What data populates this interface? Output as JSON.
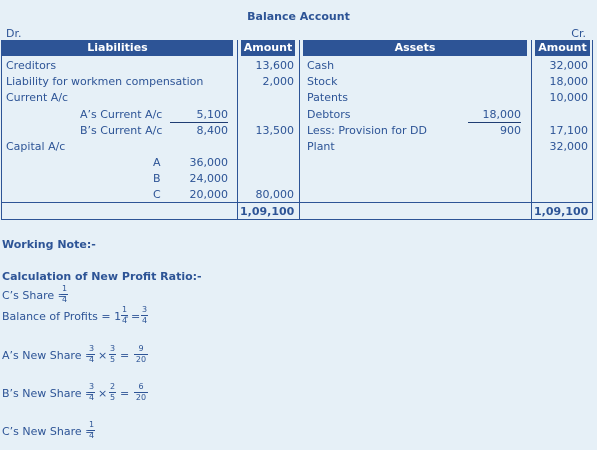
{
  "title": "Balance Account",
  "dr": "Dr.",
  "cr": "Cr.",
  "headers": {
    "liabilities": "Liabilities",
    "amount": "Amount",
    "assets": "Assets",
    "amount2": "Amount"
  },
  "liabilities": {
    "creditors": "Creditors",
    "creditors_amt": "13,600",
    "workmen": "Liability for workmen compensation",
    "workmen_amt": "2,000",
    "current": "Current A/c",
    "a_current": "A’s Current A/c",
    "a_current_amt": "5,100",
    "b_current": "B’s Current A/c",
    "b_current_amt": "8,400",
    "current_total": "13,500",
    "capital": "Capital A/c",
    "partners": [
      {
        "name": "A",
        "amount": "36,000"
      },
      {
        "name": "B",
        "amount": "24,000"
      },
      {
        "name": "C",
        "amount": "20,000"
      }
    ],
    "capital_total": "80,000",
    "grand_total": "1,09,100"
  },
  "assets": {
    "cash": "Cash",
    "cash_amt": "32,000",
    "stock": "Stock",
    "stock_amt": "18,000",
    "patents": "Patents",
    "patents_amt": "10,000",
    "debtors": "Debtors",
    "debtors_amt": "18,000",
    "provision": "Less: Provision for DD",
    "provision_amt": "900",
    "debtors_net": "17,100",
    "plant": "Plant",
    "plant_amt": "32,000",
    "grand_total": "1,09,100"
  },
  "notes": {
    "working_note": "Working Note:-",
    "calc_title": "Calculation of New Profit Ratio:-",
    "c_share": "C’s Share =",
    "balance": "Balance of Profits = 1 -",
    "a_new": "A’s New Share =",
    "b_new": "B’s New Share =",
    "c_new": "C’s New Share =",
    "times": "×",
    "equals": "=",
    "fractions": {
      "c_share": [
        "1",
        "4"
      ],
      "bal_1": [
        "1",
        "4"
      ],
      "bal_2": [
        "3",
        "4"
      ],
      "a_1": [
        "3",
        "4"
      ],
      "a_2": [
        "3",
        "5"
      ],
      "a_3": [
        "9",
        "20"
      ],
      "b_1": [
        "3",
        "4"
      ],
      "b_2": [
        "2",
        "5"
      ],
      "b_3": [
        "6",
        "20"
      ],
      "c_new": [
        "1",
        "4"
      ]
    }
  }
}
